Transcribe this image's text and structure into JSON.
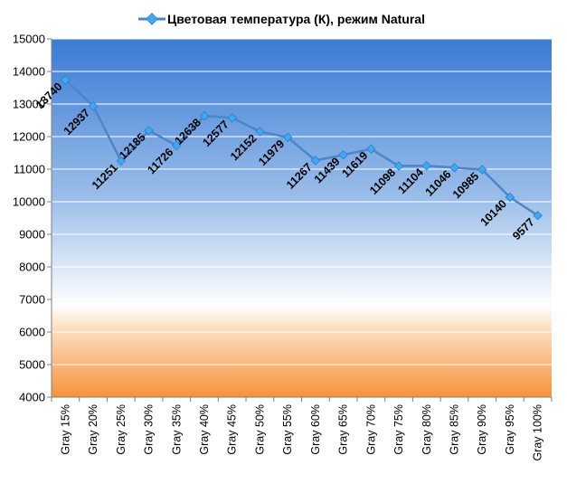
{
  "chart_data": {
    "type": "line",
    "title": "",
    "xlabel": "",
    "ylabel": "",
    "ylim": [
      4000,
      15000
    ],
    "y_ticks": [
      4000,
      5000,
      6000,
      7000,
      8000,
      9000,
      10000,
      11000,
      12000,
      13000,
      14000,
      15000
    ],
    "grid": true,
    "legend_position": "top",
    "background_colors": {
      "top": "#3a7bd5",
      "middle": "#ffffff",
      "bottom": "#f7923a"
    },
    "series_color": "#4a86c8",
    "marker_color": "#3fa9f5",
    "categories": [
      "Gray 15%",
      "Gray 20%",
      "Gray 25%",
      "Gray 30%",
      "Gray 35%",
      "Gray 40%",
      "Gray 45%",
      "Gray 50%",
      "Gray 55%",
      "Gray 60%",
      "Gray 65%",
      "Gray 70%",
      "Gray 75%",
      "Gray 80%",
      "Gray 85%",
      "Gray 90%",
      "Gray 95%",
      "Gray 100%"
    ],
    "series": [
      {
        "name": "Цветовая температура (К), режим Natural",
        "values": [
          13740,
          12937,
          11251,
          12185,
          11726,
          12638,
          12577,
          12152,
          11979,
          11267,
          11439,
          11619,
          11098,
          11104,
          11046,
          10985,
          10140,
          9577
        ]
      }
    ]
  }
}
